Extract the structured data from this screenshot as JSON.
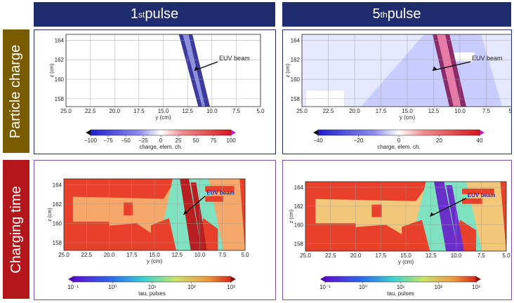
{
  "columns": [
    {
      "num": "1",
      "sup": "st",
      "rest": " pulse"
    },
    {
      "num": "5",
      "sup": "th",
      "rest": " pulse"
    }
  ],
  "rows": [
    {
      "label": "Particle charge",
      "color": "#7a5c00"
    },
    {
      "label": "Charging time",
      "color": "#b3161b"
    }
  ],
  "panels": [
    {
      "id": "charge-1",
      "row": 0,
      "col": 0,
      "ylabel": "z (cm)",
      "xlabel": "y (cm)",
      "xticks": [
        "25.0",
        "22.5",
        "20.0",
        "17.5",
        "15.0",
        "12.5",
        "10.0",
        "7.5",
        "5.0"
      ],
      "yticks": [
        "164",
        "162",
        "160",
        "158"
      ],
      "annotation": "EUV beam",
      "cbar_ticks": [
        "−100",
        "−75",
        "−50",
        "−25",
        "0",
        "25",
        "50",
        "75",
        "100"
      ],
      "cbar_label": "charge, elem. ch."
    },
    {
      "id": "charge-5",
      "row": 0,
      "col": 1,
      "ylabel": "z (cm)",
      "xlabel": "y (cm)",
      "xticks": [
        "25.0",
        "22.5",
        "20.0",
        "17.5",
        "15.0",
        "12.5",
        "10.0",
        "7.5",
        "5.0"
      ],
      "yticks": [
        "164",
        "162",
        "160",
        "158"
      ],
      "annotation": "EUV beam",
      "cbar_ticks": [
        "−40",
        "−20",
        "0",
        "20",
        "40"
      ],
      "cbar_label": "charge, elem. ch."
    },
    {
      "id": "tau-1",
      "row": 1,
      "col": 0,
      "ylabel": "z (cm)",
      "xlabel": "y (cm)",
      "xticks": [
        "25.0",
        "22.5",
        "20.0",
        "17.5",
        "15.0",
        "12.5",
        "10.0",
        "7.5",
        "5.0"
      ],
      "yticks": [
        "164",
        "162",
        "160",
        "158"
      ],
      "annotation": "EUV beam",
      "cbar_ticks": [
        "10⁻¹",
        "10⁰",
        "10¹",
        "10²",
        "10³"
      ],
      "cbar_label": "tau, pulses"
    },
    {
      "id": "tau-5",
      "row": 1,
      "col": 1,
      "ylabel": "z (cm)",
      "xlabel": "y (cm)",
      "xticks": [
        "25.0",
        "22.5",
        "20.0",
        "17.5",
        "15.0",
        "12.5",
        "10.0",
        "7.5",
        "5.0"
      ],
      "yticks": [
        "164",
        "162",
        "160",
        "158"
      ],
      "annotation": "EUV beam",
      "cbar_ticks": [
        "10⁻¹",
        "10⁰",
        "10¹",
        "10²",
        "10³"
      ],
      "cbar_label": "tau, pulses"
    }
  ]
}
